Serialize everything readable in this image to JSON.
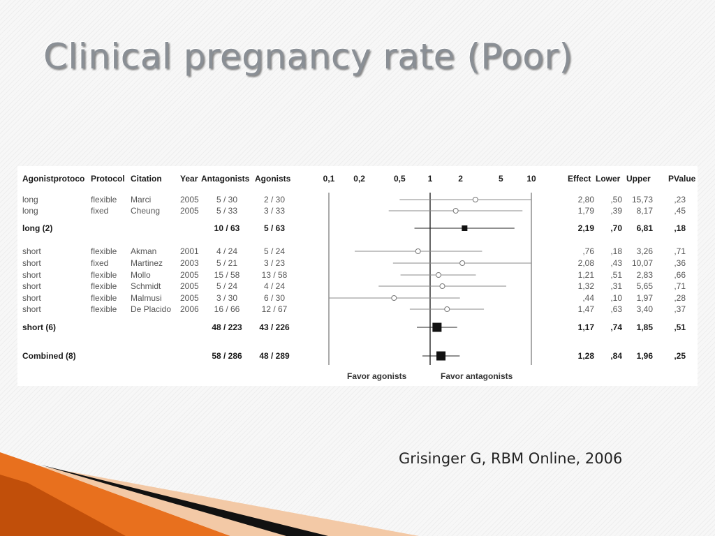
{
  "slide": {
    "title": "Clinical pregnancy rate (Poor)",
    "citation": "Grisinger G, RBM Online, 2006"
  },
  "chart_data": {
    "type": "forest",
    "title": "",
    "scale": "log",
    "xlim": [
      0.1,
      10
    ],
    "x_ticks": [
      "0,1",
      "0,2",
      "0,5",
      "1",
      "2",
      "5",
      "10"
    ],
    "x_tick_values": [
      0.1,
      0.2,
      0.5,
      1,
      2,
      5,
      10
    ],
    "reference_value": 1,
    "columns": [
      "Agonistprotoco",
      "Protocol",
      "Citation",
      "Year",
      "Antagonists",
      "Agonists",
      "Effect",
      "Lower",
      "Upper",
      "PValue"
    ],
    "favor_left": "Favor agonists",
    "favor_right": "Favor antagonists",
    "rows": [
      {
        "agonist_protocol": "long",
        "protocol": "flexible",
        "citation": "Marci",
        "year": "2005",
        "antagonists": "5 / 30",
        "agonists": "2 / 30",
        "effect_label": "2,80",
        "lower_label": ",50",
        "upper_label": "15,73",
        "p_label": ",23",
        "effect": 2.8,
        "lower": 0.5,
        "upper": 15.73,
        "kind": "study"
      },
      {
        "agonist_protocol": "long",
        "protocol": "fixed",
        "citation": "Cheung",
        "year": "2005",
        "antagonists": "5 / 33",
        "agonists": "3 / 33",
        "effect_label": "1,79",
        "lower_label": ",39",
        "upper_label": "8,17",
        "p_label": ",45",
        "effect": 1.79,
        "lower": 0.39,
        "upper": 8.17,
        "kind": "study"
      },
      {
        "agonist_protocol": "long (2)",
        "protocol": "",
        "citation": "",
        "year": "",
        "antagonists": "10 / 63",
        "agonists": "5 / 63",
        "effect_label": "2,19",
        "lower_label": ",70",
        "upper_label": "6,81",
        "p_label": ",18",
        "effect": 2.19,
        "lower": 0.7,
        "upper": 6.81,
        "kind": "subtotal"
      },
      {
        "agonist_protocol": "short",
        "protocol": "flexible",
        "citation": "Akman",
        "year": "2001",
        "antagonists": "4 / 24",
        "agonists": "5 / 24",
        "effect_label": ",76",
        "lower_label": ",18",
        "upper_label": "3,26",
        "p_label": ",71",
        "effect": 0.76,
        "lower": 0.18,
        "upper": 3.26,
        "kind": "study"
      },
      {
        "agonist_protocol": "short",
        "protocol": "fixed",
        "citation": "Martinez",
        "year": "2003",
        "antagonists": "5 / 21",
        "agonists": "3 / 23",
        "effect_label": "2,08",
        "lower_label": ",43",
        "upper_label": "10,07",
        "p_label": ",36",
        "effect": 2.08,
        "lower": 0.43,
        "upper": 10.07,
        "kind": "study"
      },
      {
        "agonist_protocol": "short",
        "protocol": "flexible",
        "citation": "Mollo",
        "year": "2005",
        "antagonists": "15 / 58",
        "agonists": "13 / 58",
        "effect_label": "1,21",
        "lower_label": ",51",
        "upper_label": "2,83",
        "p_label": ",66",
        "effect": 1.21,
        "lower": 0.51,
        "upper": 2.83,
        "kind": "study"
      },
      {
        "agonist_protocol": "short",
        "protocol": "flexible",
        "citation": "Schmidt",
        "year": "2005",
        "antagonists": "5 / 24",
        "agonists": "4 / 24",
        "effect_label": "1,32",
        "lower_label": ",31",
        "upper_label": "5,65",
        "p_label": ",71",
        "effect": 1.32,
        "lower": 0.31,
        "upper": 5.65,
        "kind": "study"
      },
      {
        "agonist_protocol": "short",
        "protocol": "flexible",
        "citation": "Malmusi",
        "year": "2005",
        "antagonists": "3 / 30",
        "agonists": "6 / 30",
        "effect_label": ",44",
        "lower_label": ",10",
        "upper_label": "1,97",
        "p_label": ",28",
        "effect": 0.44,
        "lower": 0.1,
        "upper": 1.97,
        "kind": "study"
      },
      {
        "agonist_protocol": "short",
        "protocol": "flexible",
        "citation": "De Placido",
        "year": "2006",
        "antagonists": "16 / 66",
        "agonists": "12 / 67",
        "effect_label": "1,47",
        "lower_label": ",63",
        "upper_label": "3,40",
        "p_label": ",37",
        "effect": 1.47,
        "lower": 0.63,
        "upper": 3.4,
        "kind": "study"
      },
      {
        "agonist_protocol": "short (6)",
        "protocol": "",
        "citation": "",
        "year": "",
        "antagonists": "48 / 223",
        "agonists": "43 / 226",
        "effect_label": "1,17",
        "lower_label": ",74",
        "upper_label": "1,85",
        "p_label": ",51",
        "effect": 1.17,
        "lower": 0.74,
        "upper": 1.85,
        "kind": "subtotal"
      },
      {
        "agonist_protocol": "Combined (8)",
        "protocol": "",
        "citation": "",
        "year": "",
        "antagonists": "58 / 286",
        "agonists": "48 / 289",
        "effect_label": "1,28",
        "lower_label": ",84",
        "upper_label": "1,96",
        "p_label": ",25",
        "effect": 1.28,
        "lower": 0.84,
        "upper": 1.96,
        "kind": "combined"
      }
    ]
  }
}
